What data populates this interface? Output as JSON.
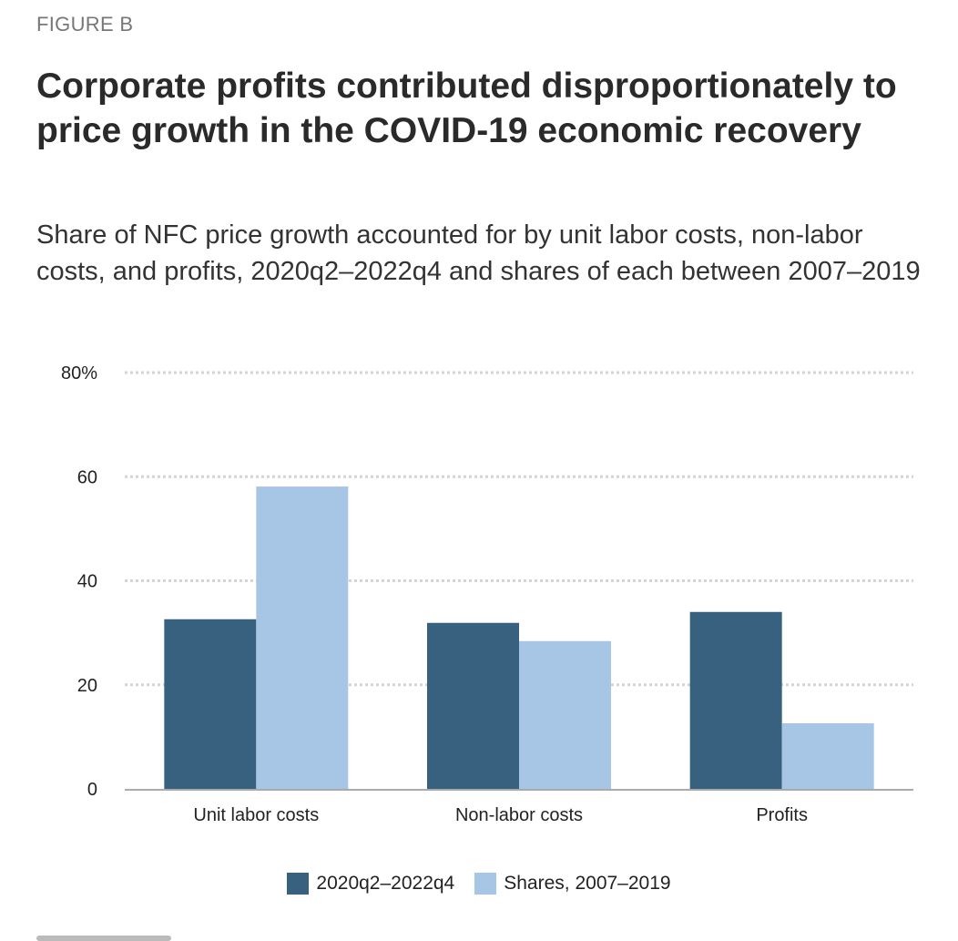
{
  "figure_label": "FIGURE B",
  "chart_data": {
    "type": "bar",
    "title": "Corporate profits contributed disproportionately to price growth in the COVID-19 economic recovery",
    "subtitle": "Share of NFC price growth accounted for by unit labor costs, non-labor costs, and profits, 2020q2–2022q4 and shares of each between 2007–2019",
    "categories": [
      "Unit labor costs",
      "Non-labor costs",
      "Profits"
    ],
    "series": [
      {
        "name": "2020q2–2022q4",
        "color": "#37617f",
        "values": [
          32.6,
          31.9,
          34.0
        ]
      },
      {
        "name": "Shares, 2007–2019",
        "color": "#a7c5e4",
        "values": [
          58.1,
          28.4,
          12.6
        ]
      }
    ],
    "yticks": [
      0,
      20,
      40,
      60,
      80
    ],
    "ytick_labels": [
      "0",
      "20",
      "40",
      "60",
      "80%"
    ],
    "ylim": [
      0,
      80
    ],
    "grid": true,
    "legend_position": "bottom"
  }
}
